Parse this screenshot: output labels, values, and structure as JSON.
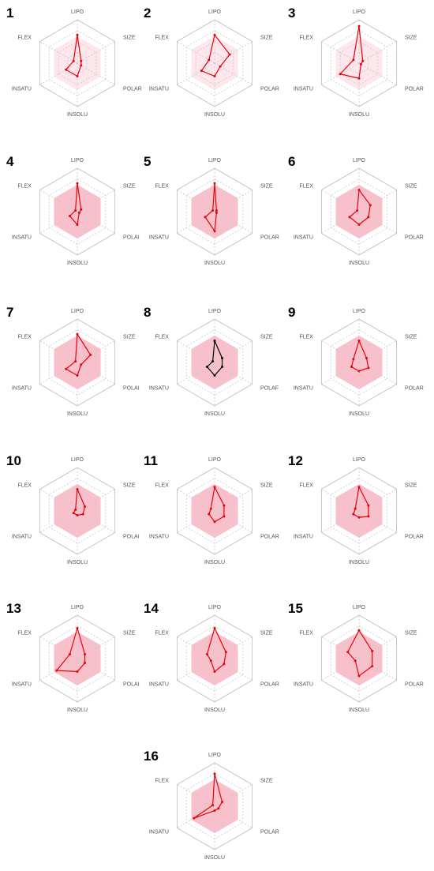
{
  "chart_data": [
    {
      "type": "radar",
      "title": "1",
      "categories": [
        "LIPO",
        "SIZE",
        "POLAR",
        "INSOLU",
        "INSATU",
        "FLEX"
      ],
      "values": [
        0.65,
        0.1,
        0.1,
        0.3,
        0.3,
        0.1
      ],
      "color": "#e8000b",
      "fill": "#fde6ec",
      "rlim": [
        0,
        1
      ],
      "rticks": [
        0.25,
        0.5,
        0.75,
        1
      ]
    },
    {
      "type": "radar",
      "title": "2",
      "categories": [
        "LIPO",
        "SIZE",
        "POLAR",
        "INSOLU",
        "INSATU",
        "FLEX"
      ],
      "values": [
        0.65,
        0.4,
        0.15,
        0.3,
        0.35,
        0.15
      ],
      "color": "#e8000b",
      "fill": "#fde6ec",
      "rlim": [
        0,
        1
      ],
      "rticks": [
        0.25,
        0.5,
        0.75,
        1
      ]
    },
    {
      "type": "radar",
      "title": "3",
      "categories": [
        "LIPO",
        "SIZE",
        "POLAR",
        "INSOLU",
        "INSATU",
        "FLEX"
      ],
      "values": [
        0.85,
        0.1,
        0.05,
        0.35,
        0.5,
        0.15
      ],
      "color": "#e8000b",
      "fill": "#fde6ec",
      "rlim": [
        0,
        1
      ],
      "rticks": [
        0.25,
        0.5,
        0.75,
        1
      ]
    },
    {
      "type": "radar",
      "title": "4",
      "categories": [
        "LIPO",
        "SIZE",
        "POLAI",
        "INSOLU",
        "INSATU",
        "FLEX"
      ],
      "values": [
        0.65,
        0.1,
        0.05,
        0.3,
        0.2,
        0.05
      ],
      "color": "#e8000b",
      "fill": "#f9c0cb",
      "rlim": [
        0,
        1
      ],
      "rticks": [
        0.25,
        0.5,
        0.75,
        1
      ]
    },
    {
      "type": "radar",
      "title": "5",
      "categories": [
        "LIPO",
        "SIZE",
        "POLAR",
        "INSOLU",
        "INSATU",
        "FLEX"
      ],
      "values": [
        0.65,
        0.05,
        0.05,
        0.45,
        0.25,
        0.05
      ],
      "color": "#e8000b",
      "fill": "#f9c0cb",
      "rlim": [
        0,
        1
      ],
      "rticks": [
        0.25,
        0.5,
        0.75,
        1
      ]
    },
    {
      "type": "radar",
      "title": "6",
      "categories": [
        "LIPO",
        "SIZE",
        "POLAR",
        "INSOLU",
        "INSATU",
        "FLEX"
      ],
      "values": [
        0.5,
        0.3,
        0.25,
        0.3,
        0.25,
        0.05
      ],
      "color": "#e8000b",
      "fill": "#f9c0cb",
      "rlim": [
        0,
        1
      ],
      "rticks": [
        0.25,
        0.5,
        0.75,
        1
      ]
    },
    {
      "type": "radar",
      "title": "7",
      "categories": [
        "LIPO",
        "SIZE",
        "POLAI",
        "INSOLU",
        "INSATU",
        "FLEX"
      ],
      "values": [
        0.65,
        0.35,
        0.1,
        0.3,
        0.3,
        0.05
      ],
      "color": "#e8000b",
      "fill": "#f9c0cb",
      "rlim": [
        0,
        1
      ],
      "rticks": [
        0.25,
        0.5,
        0.75,
        1
      ]
    },
    {
      "type": "radar",
      "title": "8",
      "categories": [
        "LIPO",
        "SIZE",
        "POLAF",
        "INSOLU",
        "INSATU",
        "FLEX"
      ],
      "values": [
        0.5,
        0.2,
        0.2,
        0.3,
        0.2,
        0.05
      ],
      "color": "#000000",
      "fill": "#f9c0cb",
      "rlim": [
        0,
        1
      ],
      "rticks": [
        0.25,
        0.5,
        0.75,
        1
      ]
    },
    {
      "type": "radar",
      "title": "9",
      "categories": [
        "LIPO",
        "SIZE",
        "POLAR",
        "INSOLU",
        "INSATU",
        "FLEX"
      ],
      "values": [
        0.5,
        0.2,
        0.25,
        0.2,
        0.2,
        0.15
      ],
      "color": "#e8000b",
      "fill": "#f9c0cb",
      "rlim": [
        0,
        1
      ],
      "rticks": [
        0.25,
        0.5,
        0.75,
        1
      ]
    },
    {
      "type": "radar",
      "title": "10",
      "categories": [
        "LIPO",
        "SIZE",
        "POLAI",
        "INSOLU",
        "INSATU",
        "FLEX"
      ],
      "values": [
        0.5,
        0.2,
        0.15,
        0.1,
        0.1,
        0.05
      ],
      "color": "#e8000b",
      "fill": "#f9c0cb",
      "rlim": [
        0,
        1
      ],
      "rticks": [
        0.25,
        0.5,
        0.75,
        1
      ]
    },
    {
      "type": "radar",
      "title": "11",
      "categories": [
        "LIPO",
        "SIZE",
        "POLAR",
        "INSOLU",
        "INSATU",
        "FLEX"
      ],
      "values": [
        0.55,
        0.25,
        0.25,
        0.25,
        0.15,
        0.1
      ],
      "color": "#e8000b",
      "fill": "#f9c0cb",
      "rlim": [
        0,
        1
      ],
      "rticks": [
        0.25,
        0.5,
        0.75,
        1
      ]
    },
    {
      "type": "radar",
      "title": "12",
      "categories": [
        "LIPO",
        "SIZE",
        "POLAR",
        "INSOLU",
        "INSATU",
        "FLEX"
      ],
      "values": [
        0.55,
        0.25,
        0.25,
        0.15,
        0.15,
        0.1
      ],
      "color": "#e8000b",
      "fill": "#f9c0cb",
      "rlim": [
        0,
        1
      ],
      "rticks": [
        0.25,
        0.5,
        0.75,
        1
      ]
    },
    {
      "type": "radar",
      "title": "13",
      "categories": [
        "LIPO",
        "SIZE",
        "POLAI",
        "INSOLU",
        "INSATU",
        "FLEX"
      ],
      "values": [
        0.7,
        0.2,
        0.2,
        0.3,
        0.55,
        0.2
      ],
      "color": "#e8000b",
      "fill": "#f9c0cb",
      "rlim": [
        0,
        1
      ],
      "rticks": [
        0.25,
        0.5,
        0.75,
        1
      ]
    },
    {
      "type": "radar",
      "title": "14",
      "categories": [
        "LIPO",
        "SIZE",
        "POLAR",
        "INSOLU",
        "INSATU",
        "FLEX"
      ],
      "values": [
        0.7,
        0.3,
        0.25,
        0.3,
        0.1,
        0.2
      ],
      "color": "#e8000b",
      "fill": "#f9c0cb",
      "rlim": [
        0,
        1
      ],
      "rticks": [
        0.25,
        0.5,
        0.75,
        1
      ]
    },
    {
      "type": "radar",
      "title": "15",
      "categories": [
        "LIPO",
        "SIZE",
        "POLAR",
        "INSOLU",
        "INSATU",
        "FLEX"
      ],
      "values": [
        0.65,
        0.35,
        0.35,
        0.4,
        0.1,
        0.3
      ],
      "color": "#e8000b",
      "fill": "#f9c0cb",
      "rlim": [
        0,
        1
      ],
      "rticks": [
        0.25,
        0.5,
        0.75,
        1
      ]
    },
    {
      "type": "radar",
      "title": "16",
      "categories": [
        "LIPO",
        "SIZE",
        "POLAR",
        "INSOLU",
        "INSATU",
        "FLEX"
      ],
      "values": [
        0.75,
        0.2,
        0.1,
        0.1,
        0.55,
        0.05
      ],
      "color": "#e8000b",
      "fill": "#f9c0cb",
      "rlim": [
        0,
        1
      ],
      "rticks": [
        0.25,
        0.5,
        0.75,
        1
      ]
    }
  ]
}
